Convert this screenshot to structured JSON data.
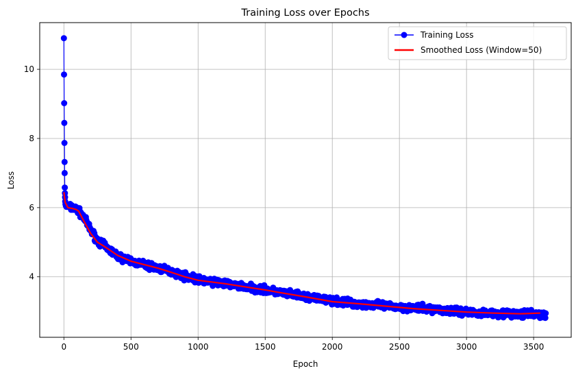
{
  "chart_data": {
    "type": "line",
    "title": "Training Loss over Epochs",
    "xlabel": "Epoch",
    "ylabel": "Loss",
    "xlim": [
      -180,
      3780
    ],
    "ylim": [
      2.25,
      11.35
    ],
    "xticks": [
      0,
      500,
      1000,
      1500,
      2000,
      2500,
      3000,
      3500
    ],
    "yticks": [
      4,
      6,
      8,
      10
    ],
    "grid": true,
    "legend_position": "top-right",
    "colors": {
      "raw": "#0000ff",
      "smoothed": "#ff0000",
      "grid": "#b0b0b0"
    },
    "series": [
      {
        "name": "Training Loss",
        "style": "line-with-circle-markers",
        "x_range": [
          0,
          3590
        ],
        "early_points": [
          [
            0,
            10.9
          ],
          [
            1,
            9.85
          ],
          [
            2,
            9.02
          ],
          [
            3,
            8.45
          ],
          [
            4,
            7.87
          ],
          [
            5,
            7.32
          ],
          [
            6,
            7.0
          ],
          [
            7,
            6.58
          ],
          [
            8,
            6.42
          ],
          [
            9,
            6.3
          ],
          [
            10,
            6.18
          ],
          [
            12,
            6.1
          ],
          [
            15,
            6.05
          ]
        ],
        "approx_points": [
          [
            20,
            6.05
          ],
          [
            60,
            6.0
          ],
          [
            100,
            5.95
          ],
          [
            150,
            5.7
          ],
          [
            200,
            5.35
          ],
          [
            250,
            5.05
          ],
          [
            300,
            4.9
          ],
          [
            400,
            4.6
          ],
          [
            500,
            4.45
          ],
          [
            600,
            4.35
          ],
          [
            700,
            4.25
          ],
          [
            800,
            4.15
          ],
          [
            900,
            4.02
          ],
          [
            1000,
            3.92
          ],
          [
            1200,
            3.8
          ],
          [
            1400,
            3.68
          ],
          [
            1500,
            3.62
          ],
          [
            1600,
            3.55
          ],
          [
            1800,
            3.42
          ],
          [
            2000,
            3.3
          ],
          [
            2200,
            3.22
          ],
          [
            2400,
            3.15
          ],
          [
            2600,
            3.1
          ],
          [
            2800,
            3.05
          ],
          [
            3000,
            2.98
          ],
          [
            3200,
            2.95
          ],
          [
            3400,
            2.92
          ],
          [
            3590,
            2.9
          ]
        ],
        "noise_amplitude": 0.15
      },
      {
        "name": "Smoothed Loss (Window=50)",
        "style": "line",
        "points": [
          [
            0,
            6.45
          ],
          [
            10,
            6.15
          ],
          [
            30,
            6.0
          ],
          [
            60,
            5.98
          ],
          [
            90,
            5.95
          ],
          [
            110,
            5.9
          ],
          [
            150,
            5.6
          ],
          [
            200,
            5.25
          ],
          [
            250,
            5.0
          ],
          [
            300,
            4.88
          ],
          [
            350,
            4.75
          ],
          [
            400,
            4.62
          ],
          [
            500,
            4.45
          ],
          [
            600,
            4.35
          ],
          [
            700,
            4.25
          ],
          [
            800,
            4.13
          ],
          [
            900,
            4.0
          ],
          [
            1000,
            3.9
          ],
          [
            1200,
            3.8
          ],
          [
            1400,
            3.68
          ],
          [
            1500,
            3.62
          ],
          [
            1600,
            3.55
          ],
          [
            1800,
            3.42
          ],
          [
            2000,
            3.28
          ],
          [
            2200,
            3.22
          ],
          [
            2400,
            3.15
          ],
          [
            2600,
            3.08
          ],
          [
            2800,
            3.03
          ],
          [
            3000,
            2.98
          ],
          [
            3200,
            2.95
          ],
          [
            3400,
            2.93
          ],
          [
            3550,
            2.95
          ]
        ]
      }
    ]
  }
}
